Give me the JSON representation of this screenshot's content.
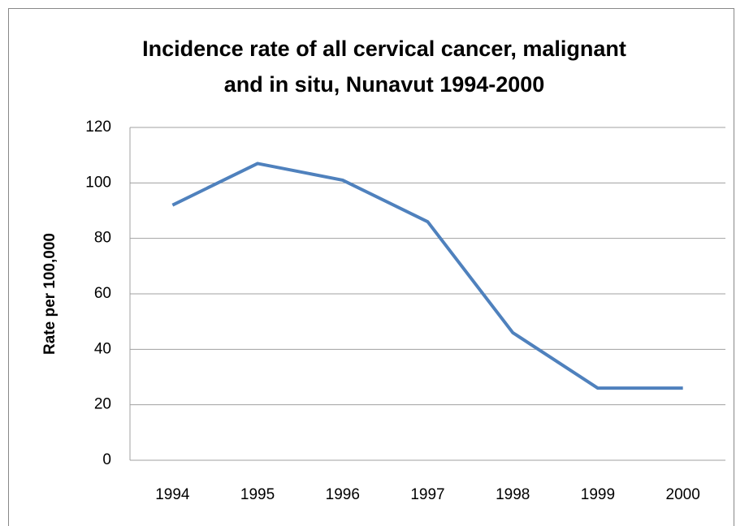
{
  "chart_data": {
    "type": "line",
    "title": "Incidence rate of all cervical cancer, malignant\nand in situ, Nunavut 1994-2000",
    "y_label": "Rate per 100,000",
    "categories": [
      "1994",
      "1995",
      "1996",
      "1997",
      "1998",
      "1999",
      "2000"
    ],
    "series": [
      {
        "name": "Rate",
        "color": "#4f81bd",
        "values": [
          92,
          107,
          101,
          86,
          46,
          26,
          26
        ]
      }
    ],
    "ylim": [
      0,
      120
    ],
    "yticks": [
      0,
      20,
      40,
      60,
      80,
      100,
      120
    ],
    "grid": true,
    "legend": false
  }
}
